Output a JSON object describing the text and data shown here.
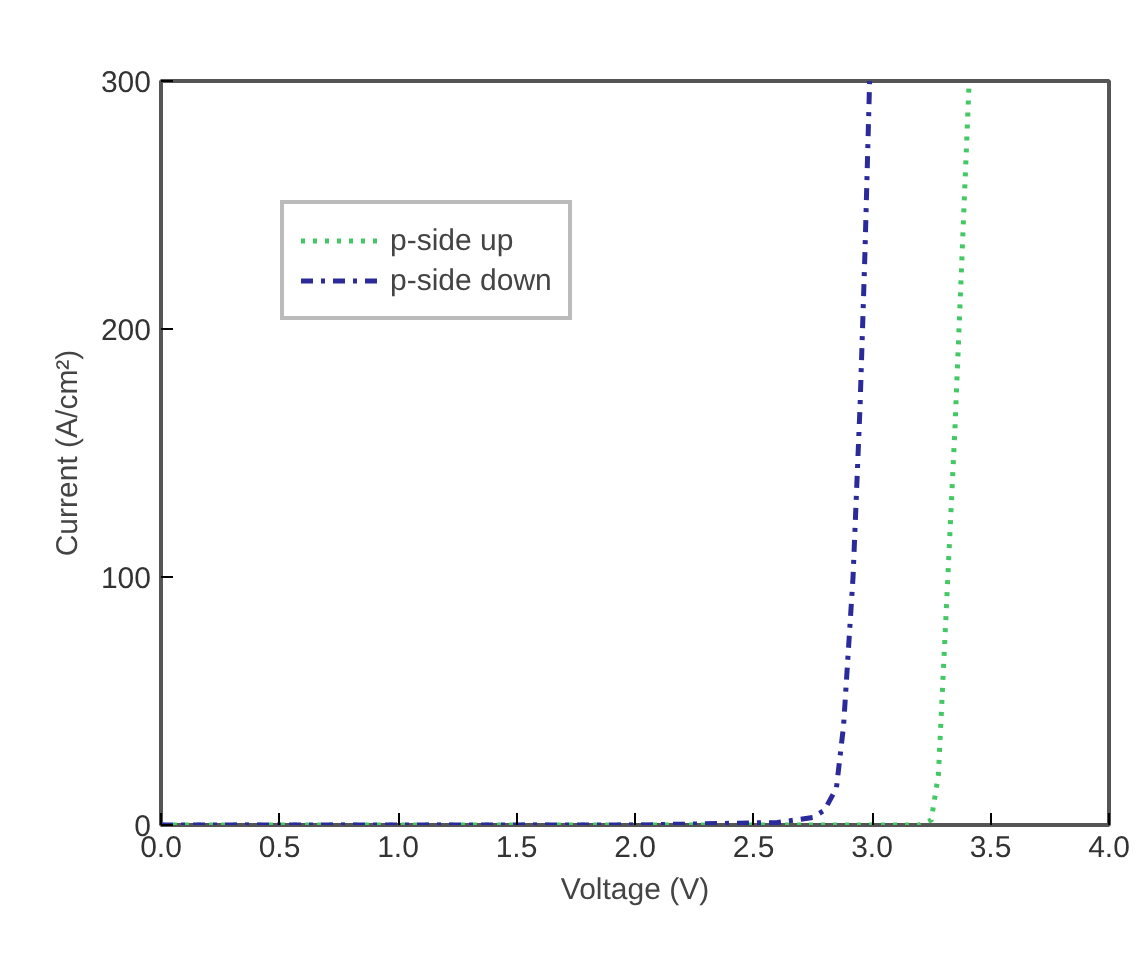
{
  "chart_data": {
    "type": "line",
    "xlabel": "Voltage (V)",
    "ylabel": "Current (A/cm²)",
    "xlim": [
      0,
      4
    ],
    "ylim": [
      0,
      300
    ],
    "xticks": [
      {
        "value": 0,
        "label": "0.0"
      },
      {
        "value": 0.5,
        "label": "0.5"
      },
      {
        "value": 1,
        "label": "1.0"
      },
      {
        "value": 1.5,
        "label": "1.5"
      },
      {
        "value": 2,
        "label": "2.0"
      },
      {
        "value": 2.5,
        "label": "2.5"
      },
      {
        "value": 3,
        "label": "3.0"
      },
      {
        "value": 3.5,
        "label": "3.5"
      },
      {
        "value": 4,
        "label": "4.0"
      }
    ],
    "yticks": [
      0,
      100,
      200,
      300
    ],
    "grid": false,
    "legend": "top left",
    "series": [
      {
        "name": "p-side up",
        "color": "#44c866",
        "line_style": "dotted",
        "x": [
          0,
          1,
          2,
          3,
          3.2,
          3.25,
          3.28,
          3.31,
          3.35,
          3.38,
          3.41
        ],
        "values": [
          0,
          0,
          0,
          0,
          0,
          2,
          20,
          80,
          160,
          230,
          300
        ]
      },
      {
        "name": "p-side down",
        "color": "#2a2a9a",
        "line_style": "dashdot",
        "x": [
          0,
          1,
          2,
          2.6,
          2.75,
          2.8,
          2.85,
          2.88,
          2.92,
          2.95,
          2.97,
          2.99
        ],
        "values": [
          0,
          0,
          0,
          1,
          3,
          6,
          15,
          40,
          100,
          170,
          230,
          300
        ]
      }
    ]
  }
}
